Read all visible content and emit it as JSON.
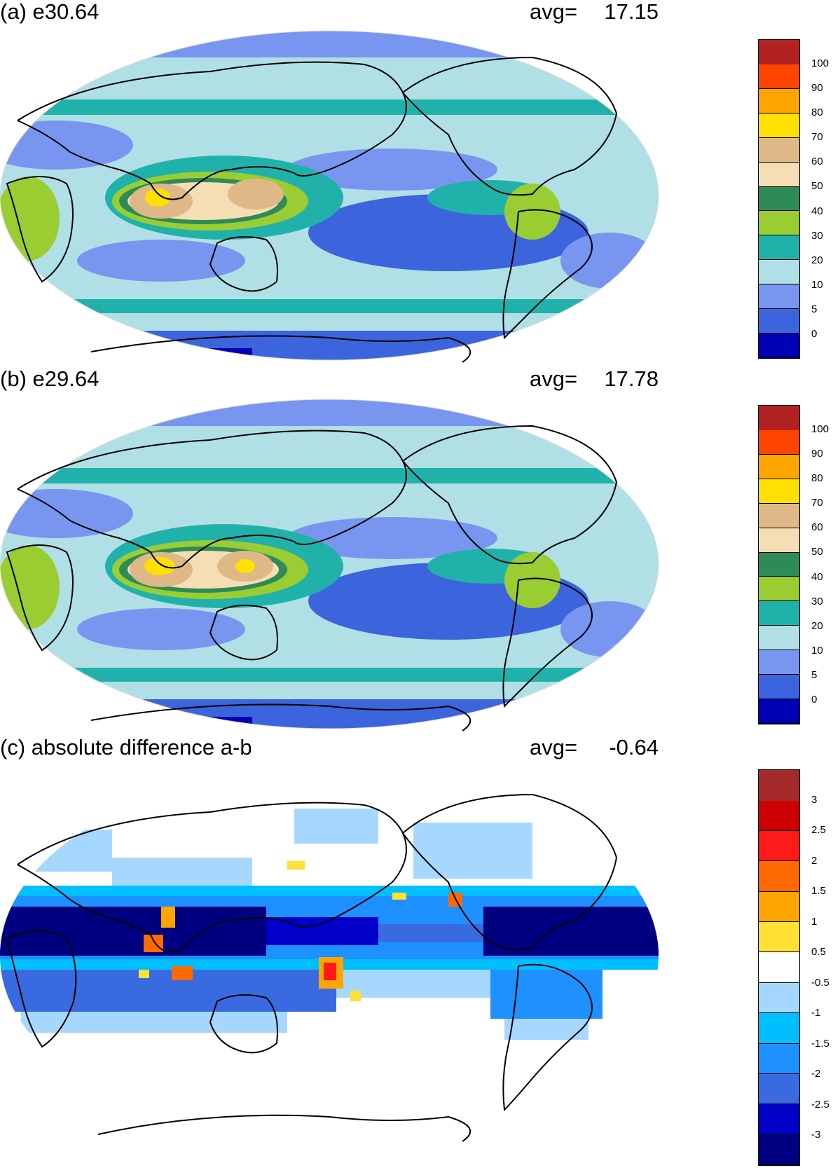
{
  "panels": [
    {
      "id": "a",
      "title": "(a) e30.64",
      "avg_label": "avg=",
      "avg_value": "17.15",
      "colorbar": {
        "colors": [
          "#0000b4",
          "#3c64dc",
          "#7896f0",
          "#b0e0e6",
          "#20b2aa",
          "#9acd32",
          "#2e8b57",
          "#f5deb3",
          "#deb887",
          "#ffe000",
          "#ffa500",
          "#ff4500",
          "#b22222"
        ],
        "labels": [
          "0",
          "5",
          "10",
          "20",
          "30",
          "40",
          "50",
          "60",
          "70",
          "80",
          "90",
          "100"
        ]
      }
    },
    {
      "id": "b",
      "title": "(b) e29.64",
      "avg_label": "avg=",
      "avg_value": "17.78",
      "colorbar": {
        "colors": [
          "#0000b4",
          "#3c64dc",
          "#7896f0",
          "#b0e0e6",
          "#20b2aa",
          "#9acd32",
          "#2e8b57",
          "#f5deb3",
          "#deb887",
          "#ffe000",
          "#ffa500",
          "#ff4500",
          "#b22222"
        ],
        "labels": [
          "0",
          "5",
          "10",
          "20",
          "30",
          "40",
          "50",
          "60",
          "70",
          "80",
          "90",
          "100"
        ]
      }
    },
    {
      "id": "c",
      "title": "(c) absolute difference a-b",
      "avg_label": "avg=",
      "avg_value": "-0.64",
      "colorbar": {
        "colors": [
          "#000080",
          "#0000c8",
          "#3a6ae0",
          "#1e90ff",
          "#00bfff",
          "#a6d8ff",
          "#ffffff",
          "#ffe033",
          "#ffa500",
          "#ff6a00",
          "#ff1a1a",
          "#cc0000",
          "#a52a2a"
        ],
        "labels": [
          "-3",
          "-2.5",
          "-2",
          "-1.5",
          "-1",
          "-0.5",
          "0.5",
          "1",
          "1.5",
          "2",
          "2.5",
          "3"
        ]
      }
    }
  ]
}
